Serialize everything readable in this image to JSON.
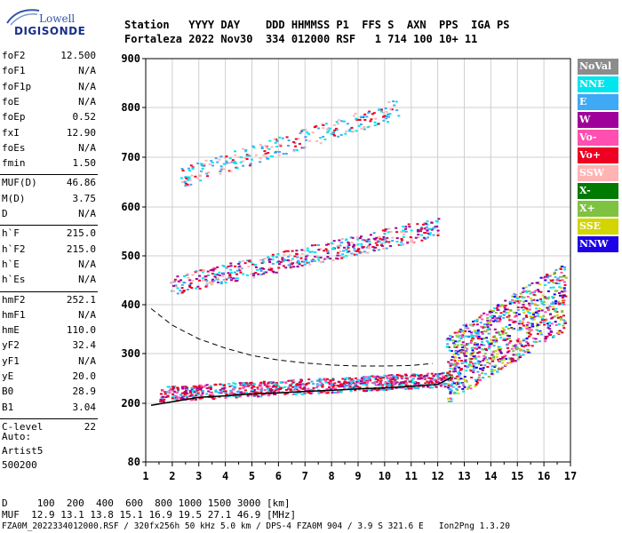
{
  "logo": {
    "line1": "Lowell",
    "line2": "DIGISONDE"
  },
  "header": {
    "line1": "Station   YYYY DAY    DDD HHMMSS P1  FFS S  AXN  PPS  IGA PS",
    "line2": "Fortaleza 2022 Nov30  334 012000 RSF   1 714 100 10+ 11"
  },
  "params": [
    {
      "label": "foF2",
      "value": "12.500"
    },
    {
      "label": "foF1",
      "value": "N/A"
    },
    {
      "label": "foF1p",
      "value": "N/A"
    },
    {
      "label": "foE",
      "value": "N/A"
    },
    {
      "label": "foEp",
      "value": "0.52"
    },
    {
      "label": "fxI",
      "value": "12.90"
    },
    {
      "label": "foEs",
      "value": "N/A"
    },
    {
      "label": "fmin",
      "value": "1.50"
    },
    {
      "label": "MUF(D)",
      "value": "46.86"
    },
    {
      "label": "M(D)",
      "value": "3.75"
    },
    {
      "label": "D",
      "value": "N/A"
    },
    {
      "label": "h`F",
      "value": "215.0"
    },
    {
      "label": "h`F2",
      "value": "215.0"
    },
    {
      "label": "h`E",
      "value": "N/A"
    },
    {
      "label": "h`Es",
      "value": "N/A"
    },
    {
      "label": "hmF2",
      "value": "252.1"
    },
    {
      "label": "hmF1",
      "value": "N/A"
    },
    {
      "label": "hmE",
      "value": "110.0"
    },
    {
      "label": "yF2",
      "value": "32.4"
    },
    {
      "label": "yF1",
      "value": "N/A"
    },
    {
      "label": "yE",
      "value": "20.0"
    },
    {
      "label": "B0",
      "value": "28.9"
    },
    {
      "label": "B1",
      "value": "3.04"
    },
    {
      "label": "C-level",
      "value": "22"
    }
  ],
  "auto": {
    "line1": "Auto:",
    "line2": "Artist5",
    "line3": "500200"
  },
  "legend": [
    {
      "label": "NoVal",
      "color": "#8c8c8c"
    },
    {
      "label": "NNE",
      "color": "#00e5ee"
    },
    {
      "label": "E",
      "color": "#3fa9f5"
    },
    {
      "label": "W",
      "color": "#a0009a"
    },
    {
      "label": "Vo-",
      "color": "#ff4fb0"
    },
    {
      "label": "Vo+",
      "color": "#ee0022"
    },
    {
      "label": "SSW",
      "color": "#ffb3b3"
    },
    {
      "label": "X-",
      "color": "#007a00"
    },
    {
      "label": "X+",
      "color": "#7fc241"
    },
    {
      "label": "SSE",
      "color": "#d4d400"
    },
    {
      "label": "NNW",
      "color": "#1c00e6"
    }
  ],
  "bottom": {
    "line1": "D     100  200  400  600  800 1000 1500 3000 [km]",
    "line2": "MUF  12.9 13.1 13.8 15.1 16.9 19.5 27.1 46.9 [MHz]",
    "line3": "FZA0M_2022334012000.RSF / 320fx256h 50 kHz 5.0 km / DPS-4 FZA0M 904 / 3.9 S 321.6 E   Ion2Png 1.3.20"
  },
  "chart_data": {
    "type": "scatter",
    "title": "",
    "xlabel": "",
    "ylabel": "",
    "xlim": [
      1,
      17
    ],
    "ylim": [
      80,
      900
    ],
    "x_ticks": [
      1,
      2,
      3,
      4,
      5,
      6,
      7,
      8,
      9,
      10,
      11,
      12,
      13,
      14,
      15,
      16,
      17
    ],
    "y_ticks": [
      80,
      200,
      300,
      400,
      500,
      600,
      700,
      800,
      900
    ],
    "grid": true,
    "profile_solid": {
      "x": [
        1.2,
        2,
        3,
        4,
        5,
        6,
        7,
        8,
        9,
        10,
        11,
        12,
        12.3,
        12.5
      ],
      "y": [
        196,
        203,
        212,
        215,
        219,
        221,
        224,
        226,
        229,
        231,
        234,
        238,
        246,
        252
      ]
    },
    "profile_dashed": {
      "x": [
        1.2,
        2,
        3,
        4,
        5,
        6,
        7,
        8,
        9,
        10,
        11,
        11.8
      ],
      "y": [
        392,
        358,
        330,
        311,
        296,
        287,
        281,
        277,
        275,
        275,
        276,
        280
      ]
    },
    "echo_traces": [
      {
        "name": "F1 trace",
        "x": [
          1.5,
          12.5
        ],
        "y": [
          220,
          250
        ]
      },
      {
        "name": "2F trace",
        "x": [
          1.9,
          12
        ],
        "y": [
          440,
          560
        ]
      },
      {
        "name": "3F trace",
        "x": [
          2.3,
          10.5
        ],
        "y": [
          660,
          800
        ]
      },
      {
        "name": "spread F",
        "x": [
          12.3,
          16.8
        ],
        "y": [
          270,
          420
        ]
      }
    ]
  }
}
